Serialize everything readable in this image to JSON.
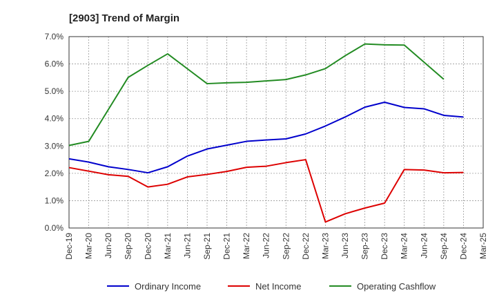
{
  "chart_data": {
    "type": "line",
    "title": "[2903]  Trend of Margin",
    "xlabel": "",
    "ylabel": "",
    "ylim": [
      0,
      7
    ],
    "y_ticks": [
      "0.0%",
      "1.0%",
      "2.0%",
      "3.0%",
      "4.0%",
      "5.0%",
      "6.0%",
      "7.0%"
    ],
    "categories": [
      "Dec-19",
      "Mar-20",
      "Jun-20",
      "Sep-20",
      "Dec-20",
      "Mar-21",
      "Jun-21",
      "Sep-21",
      "Dec-21",
      "Mar-22",
      "Jun-22",
      "Sep-22",
      "Dec-22",
      "Mar-23",
      "Jun-23",
      "Sep-23",
      "Dec-23",
      "Mar-24",
      "Jun-24",
      "Sep-24",
      "Dec-24",
      "Mar-25"
    ],
    "grid": true,
    "legend_position": "bottom",
    "series": [
      {
        "name": "Ordinary Income",
        "color": "#0000cc",
        "values": [
          2.53,
          2.41,
          2.24,
          2.14,
          2.02,
          2.24,
          2.63,
          2.89,
          3.03,
          3.17,
          3.22,
          3.26,
          3.44,
          3.73,
          4.06,
          4.42,
          4.6,
          4.41,
          4.36,
          4.12,
          4.06,
          null
        ]
      },
      {
        "name": "Net Income",
        "color": "#dd0000",
        "values": [
          2.21,
          2.08,
          1.95,
          1.89,
          1.5,
          1.6,
          1.87,
          1.96,
          2.07,
          2.22,
          2.26,
          2.39,
          2.5,
          0.22,
          0.52,
          0.73,
          0.91,
          2.14,
          2.12,
          2.02,
          2.03,
          null
        ]
      },
      {
        "name": "Operating Cashflow",
        "color": "#228b22",
        "values": [
          3.02,
          3.17,
          null,
          5.51,
          5.95,
          6.37,
          null,
          5.28,
          5.31,
          5.33,
          5.38,
          5.43,
          5.6,
          5.83,
          6.3,
          6.73,
          6.7,
          6.69,
          null,
          5.44,
          null,
          null
        ]
      }
    ]
  }
}
